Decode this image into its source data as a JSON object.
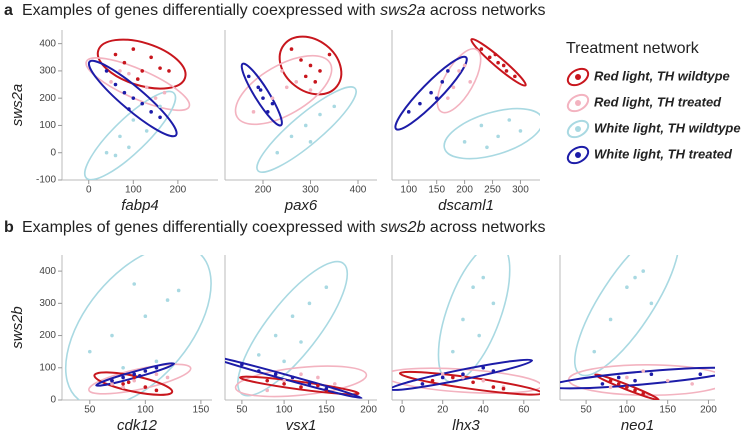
{
  "panels": [
    {
      "label": "a",
      "title": [
        "Examples of genes differentially coexpressed with ",
        "sws2a",
        " across networks"
      ]
    },
    {
      "label": "b",
      "title": [
        "Examples of genes differentially coexpressed with ",
        "sws2b",
        " across networks"
      ]
    }
  ],
  "legend": {
    "title": "Treatment network",
    "entries": [
      {
        "name": "Red light, TH wildtype",
        "color": "#c8161d"
      },
      {
        "name": "Red light, TH treated",
        "color": "#f3b3c0"
      },
      {
        "name": "White light, TH wildtype",
        "color": "#a9d9e2"
      },
      {
        "name": "White light, TH treated",
        "color": "#1c1ca8"
      }
    ]
  },
  "chart_data": [
    {
      "type": "scatter",
      "xlabel": "fabp4",
      "ylabel": "sws2a",
      "xlim": [
        -60,
        290
      ],
      "ylim": [
        -100,
        450
      ],
      "xticks": [
        0,
        100,
        200
      ],
      "yticks": [
        -100,
        0,
        100,
        200,
        300,
        400
      ],
      "series": [
        {
          "color": "#c8161d",
          "x": [
            60,
            80,
            100,
            120,
            140,
            160,
            180,
            110
          ],
          "y": [
            360,
            330,
            380,
            300,
            350,
            310,
            300,
            270
          ]
        },
        {
          "color": "#f3b3c0",
          "x": [
            50,
            90,
            130,
            150,
            170,
            70
          ],
          "y": [
            260,
            290,
            240,
            200,
            220,
            300
          ]
        },
        {
          "color": "#a9d9e2",
          "x": [
            40,
            70,
            100,
            130,
            160,
            60,
            90
          ],
          "y": [
            0,
            60,
            120,
            80,
            170,
            -10,
            20
          ]
        },
        {
          "color": "#1c1ca8",
          "x": [
            40,
            60,
            80,
            100,
            120,
            140,
            160,
            90
          ],
          "y": [
            300,
            250,
            220,
            200,
            180,
            150,
            130,
            160
          ]
        }
      ]
    },
    {
      "type": "scatter",
      "xlabel": "pax6",
      "xlim": [
        120,
        440
      ],
      "ylim": [
        -100,
        450
      ],
      "xticks": [
        200,
        300,
        400
      ],
      "series": [
        {
          "color": "#c8161d",
          "x": [
            260,
            280,
            300,
            320,
            340,
            290,
            310
          ],
          "y": [
            380,
            340,
            320,
            300,
            360,
            280,
            260
          ]
        },
        {
          "color": "#f3b3c0",
          "x": [
            180,
            220,
            250,
            270,
            300,
            240
          ],
          "y": [
            150,
            200,
            240,
            260,
            230,
            300
          ]
        },
        {
          "color": "#a9d9e2",
          "x": [
            230,
            260,
            290,
            320,
            350,
            300
          ],
          "y": [
            0,
            60,
            100,
            140,
            170,
            40
          ]
        },
        {
          "color": "#1c1ca8",
          "x": [
            170,
            190,
            200,
            210,
            220,
            195
          ],
          "y": [
            280,
            240,
            200,
            150,
            180,
            230
          ]
        }
      ]
    },
    {
      "type": "scatter",
      "xlabel": "dscaml1",
      "xlim": [
        70,
        335
      ],
      "ylim": [
        -100,
        450
      ],
      "xticks": [
        100,
        150,
        200,
        250,
        300
      ],
      "series": [
        {
          "color": "#c8161d",
          "x": [
            230,
            245,
            260,
            275,
            290,
            255,
            270
          ],
          "y": [
            380,
            350,
            330,
            300,
            280,
            360,
            320
          ]
        },
        {
          "color": "#f3b3c0",
          "x": [
            180,
            190,
            200,
            210,
            170
          ],
          "y": [
            240,
            300,
            320,
            260,
            200
          ]
        },
        {
          "color": "#a9d9e2",
          "x": [
            200,
            230,
            260,
            280,
            300,
            240
          ],
          "y": [
            40,
            100,
            60,
            120,
            80,
            20
          ]
        },
        {
          "color": "#1c1ca8",
          "x": [
            100,
            120,
            140,
            160,
            170,
            150
          ],
          "y": [
            150,
            180,
            220,
            260,
            300,
            200
          ]
        }
      ]
    },
    {
      "type": "scatter",
      "xlabel": "cdk12",
      "ylabel": "sws2b",
      "xlim": [
        25,
        160
      ],
      "ylim": [
        0,
        450
      ],
      "xticks": [
        50,
        100,
        150
      ],
      "yticks": [
        0,
        100,
        200,
        300,
        400
      ],
      "series": [
        {
          "color": "#a9d9e2",
          "x": [
            50,
            70,
            90,
            110,
            120,
            130,
            100,
            80
          ],
          "y": [
            150,
            200,
            360,
            120,
            310,
            340,
            260,
            100
          ]
        },
        {
          "color": "#f3b3c0",
          "x": [
            70,
            90,
            110,
            120,
            80,
            100
          ],
          "y": [
            50,
            60,
            80,
            70,
            40,
            90
          ]
        },
        {
          "color": "#c8161d",
          "x": [
            70,
            80,
            90,
            100,
            110,
            85
          ],
          "y": [
            60,
            50,
            70,
            40,
            30,
            55
          ]
        },
        {
          "color": "#1c1ca8",
          "x": [
            70,
            80,
            90,
            100,
            110,
            95
          ],
          "y": [
            60,
            70,
            80,
            90,
            100,
            75
          ]
        }
      ]
    },
    {
      "type": "scatter",
      "xlabel": "vsx1",
      "xlim": [
        30,
        210
      ],
      "ylim": [
        0,
        450
      ],
      "xticks": [
        50,
        100,
        150,
        200
      ],
      "series": [
        {
          "color": "#a9d9e2",
          "x": [
            70,
            90,
            110,
            130,
            150,
            100,
            120
          ],
          "y": [
            140,
            200,
            260,
            300,
            350,
            120,
            180
          ]
        },
        {
          "color": "#f3b3c0",
          "x": [
            80,
            100,
            120,
            140,
            160
          ],
          "y": [
            30,
            60,
            80,
            70,
            50
          ]
        },
        {
          "color": "#c8161d",
          "x": [
            80,
            100,
            120,
            140,
            150
          ],
          "y": [
            60,
            50,
            40,
            45,
            30
          ]
        },
        {
          "color": "#1c1ca8",
          "x": [
            50,
            70,
            90,
            110,
            130,
            150
          ],
          "y": [
            110,
            90,
            80,
            70,
            50,
            35
          ]
        }
      ]
    },
    {
      "type": "scatter",
      "xlabel": "lhx3",
      "xlim": [
        -5,
        68
      ],
      "ylim": [
        0,
        450
      ],
      "xticks": [
        0,
        20,
        40,
        60
      ],
      "series": [
        {
          "color": "#a9d9e2",
          "x": [
            25,
            30,
            35,
            40,
            45,
            38
          ],
          "y": [
            150,
            250,
            350,
            380,
            300,
            200
          ]
        },
        {
          "color": "#f3b3c0",
          "x": [
            10,
            20,
            30,
            40,
            50
          ],
          "y": [
            50,
            80,
            70,
            60,
            40
          ]
        },
        {
          "color": "#c8161d",
          "x": [
            15,
            25,
            35,
            45,
            50
          ],
          "y": [
            60,
            70,
            55,
            40,
            35
          ]
        },
        {
          "color": "#1c1ca8",
          "x": [
            10,
            20,
            30,
            40,
            45
          ],
          "y": [
            50,
            70,
            80,
            100,
            90
          ]
        }
      ]
    },
    {
      "type": "scatter",
      "xlabel": "neo1",
      "xlim": [
        18,
        208
      ],
      "ylim": [
        0,
        450
      ],
      "xticks": [
        50,
        100,
        150,
        200
      ],
      "series": [
        {
          "color": "#a9d9e2",
          "x": [
            60,
            80,
            100,
            120,
            130,
            110
          ],
          "y": [
            150,
            250,
            350,
            400,
            300,
            380
          ]
        },
        {
          "color": "#f3b3c0",
          "x": [
            80,
            100,
            120,
            150,
            180
          ],
          "y": [
            40,
            70,
            90,
            60,
            50
          ]
        },
        {
          "color": "#c8161d",
          "x": [
            80,
            90,
            100,
            110,
            120
          ],
          "y": [
            60,
            50,
            40,
            30,
            20
          ]
        },
        {
          "color": "#1c1ca8",
          "x": [
            70,
            90,
            110,
            130,
            190
          ],
          "y": [
            50,
            70,
            60,
            80,
            80
          ]
        }
      ]
    }
  ]
}
